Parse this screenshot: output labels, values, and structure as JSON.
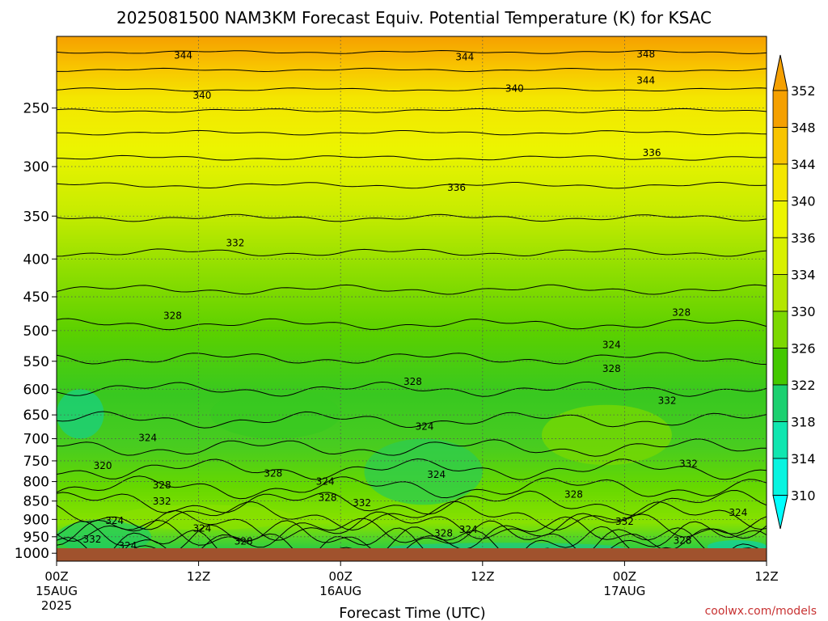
{
  "title": "2025081500 NAM3KM Forecast Equiv. Potential Temperature (K) for KSAC",
  "credit": "coolwx.com/models",
  "chart_data": {
    "type": "heatmap",
    "title": "2025081500 NAM3KM Forecast Equiv. Potential Temperature (K) for KSAC",
    "xlabel": "Forecast Time (UTC)",
    "ylabel": "",
    "x_ticks": [
      {
        "hour": 0,
        "label": "00Z",
        "sub": "15AUG",
        "sub2": "2025"
      },
      {
        "hour": 12,
        "label": "12Z",
        "sub": "",
        "sub2": ""
      },
      {
        "hour": 24,
        "label": "00Z",
        "sub": "16AUG",
        "sub2": ""
      },
      {
        "hour": 36,
        "label": "12Z",
        "sub": "",
        "sub2": ""
      },
      {
        "hour": 48,
        "label": "00Z",
        "sub": "17AUG",
        "sub2": ""
      },
      {
        "hour": 60,
        "label": "12Z",
        "sub": "",
        "sub2": ""
      }
    ],
    "xlim": [
      0,
      60
    ],
    "y_ticks": [
      250,
      300,
      350,
      400,
      450,
      500,
      550,
      600,
      650,
      700,
      750,
      800,
      850,
      900,
      950,
      1000
    ],
    "ylim_hpa": [
      200,
      1025
    ],
    "y_scale": "log",
    "grid": "dotted",
    "colorbar": {
      "labels": [
        352,
        348,
        344,
        340,
        336,
        334,
        330,
        326,
        322,
        318,
        314,
        310
      ],
      "colors": [
        "#f5a000",
        "#f8c400",
        "#f4e600",
        "#ecf400",
        "#d8f000",
        "#b4e600",
        "#7cd800",
        "#44c800",
        "#1cd070",
        "#10e6b0",
        "#08f4e0",
        "#00ffff"
      ],
      "placement": "right"
    },
    "contour_labels": [
      {
        "hour": 10.7,
        "hpa": 212,
        "value": "344"
      },
      {
        "hour": 34.5,
        "hpa": 213,
        "value": "344"
      },
      {
        "hour": 49.8,
        "hpa": 211,
        "value": "348"
      },
      {
        "hour": 49.8,
        "hpa": 229,
        "value": "344"
      },
      {
        "hour": 12.3,
        "hpa": 240,
        "value": "340"
      },
      {
        "hour": 38.7,
        "hpa": 235,
        "value": "340"
      },
      {
        "hour": 50.3,
        "hpa": 287,
        "value": "336"
      },
      {
        "hour": 33.8,
        "hpa": 320,
        "value": "336"
      },
      {
        "hour": 15.1,
        "hpa": 380,
        "value": "332"
      },
      {
        "hour": 9.8,
        "hpa": 477,
        "value": "328"
      },
      {
        "hour": 46.9,
        "hpa": 522,
        "value": "324"
      },
      {
        "hour": 52.8,
        "hpa": 472,
        "value": "328"
      },
      {
        "hour": 46.9,
        "hpa": 562,
        "value": "328"
      },
      {
        "hour": 30.1,
        "hpa": 585,
        "value": "328"
      },
      {
        "hour": 51.6,
        "hpa": 621,
        "value": "332"
      },
      {
        "hour": 7.7,
        "hpa": 697,
        "value": "324"
      },
      {
        "hour": 31.1,
        "hpa": 673,
        "value": "324"
      },
      {
        "hour": 3.9,
        "hpa": 761,
        "value": "320"
      },
      {
        "hour": 18.3,
        "hpa": 779,
        "value": "328"
      },
      {
        "hour": 32.1,
        "hpa": 782,
        "value": "324"
      },
      {
        "hour": 22.7,
        "hpa": 799,
        "value": "324"
      },
      {
        "hour": 8.9,
        "hpa": 808,
        "value": "328"
      },
      {
        "hour": 53.4,
        "hpa": 756,
        "value": "332"
      },
      {
        "hour": 8.9,
        "hpa": 850,
        "value": "332"
      },
      {
        "hour": 22.9,
        "hpa": 840,
        "value": "328"
      },
      {
        "hour": 25.8,
        "hpa": 854,
        "value": "332"
      },
      {
        "hour": 43.7,
        "hpa": 832,
        "value": "328"
      },
      {
        "hour": 4.9,
        "hpa": 903,
        "value": "324"
      },
      {
        "hour": 12.3,
        "hpa": 925,
        "value": "324"
      },
      {
        "hour": 34.8,
        "hpa": 928,
        "value": "324"
      },
      {
        "hour": 32.7,
        "hpa": 938,
        "value": "328"
      },
      {
        "hour": 48.0,
        "hpa": 905,
        "value": "332"
      },
      {
        "hour": 57.6,
        "hpa": 880,
        "value": "324"
      },
      {
        "hour": 3.0,
        "hpa": 956,
        "value": "332"
      },
      {
        "hour": 6.0,
        "hpa": 976,
        "value": "324"
      },
      {
        "hour": 15.8,
        "hpa": 962,
        "value": "328"
      },
      {
        "hour": 52.9,
        "hpa": 960,
        "value": "328"
      }
    ]
  }
}
